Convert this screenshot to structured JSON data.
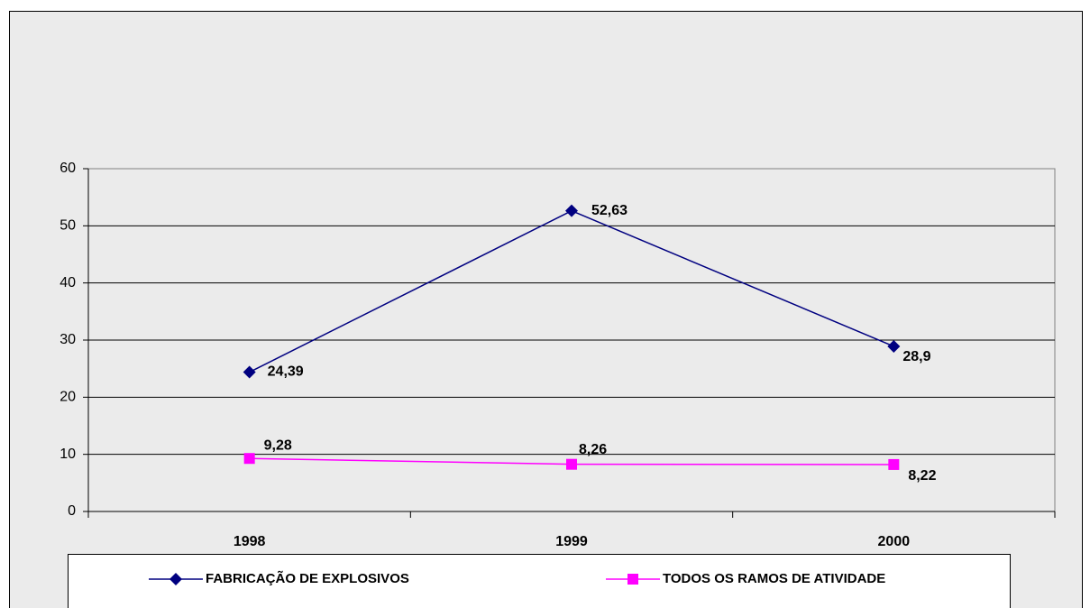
{
  "chart_data": {
    "type": "line",
    "categories": [
      "1998",
      "1999",
      "2000"
    ],
    "series": [
      {
        "name": "FABRICAÇÃO DE EXPLOSIVOS",
        "color": "#000080",
        "marker": "diamond",
        "values": [
          24.39,
          52.63,
          28.9
        ],
        "value_labels": [
          "24,39",
          "52,63",
          "28,9"
        ]
      },
      {
        "name": "TODOS OS RAMOS DE ATIVIDADE",
        "color": "#ff00ff",
        "marker": "square",
        "values": [
          9.28,
          8.26,
          8.22
        ],
        "value_labels": [
          "9,28",
          "8,26",
          "8,22"
        ]
      }
    ],
    "ylim": [
      0,
      60
    ],
    "yticks": [
      0,
      10,
      20,
      30,
      40,
      50,
      60
    ],
    "grid": true,
    "legend": "bottom"
  }
}
